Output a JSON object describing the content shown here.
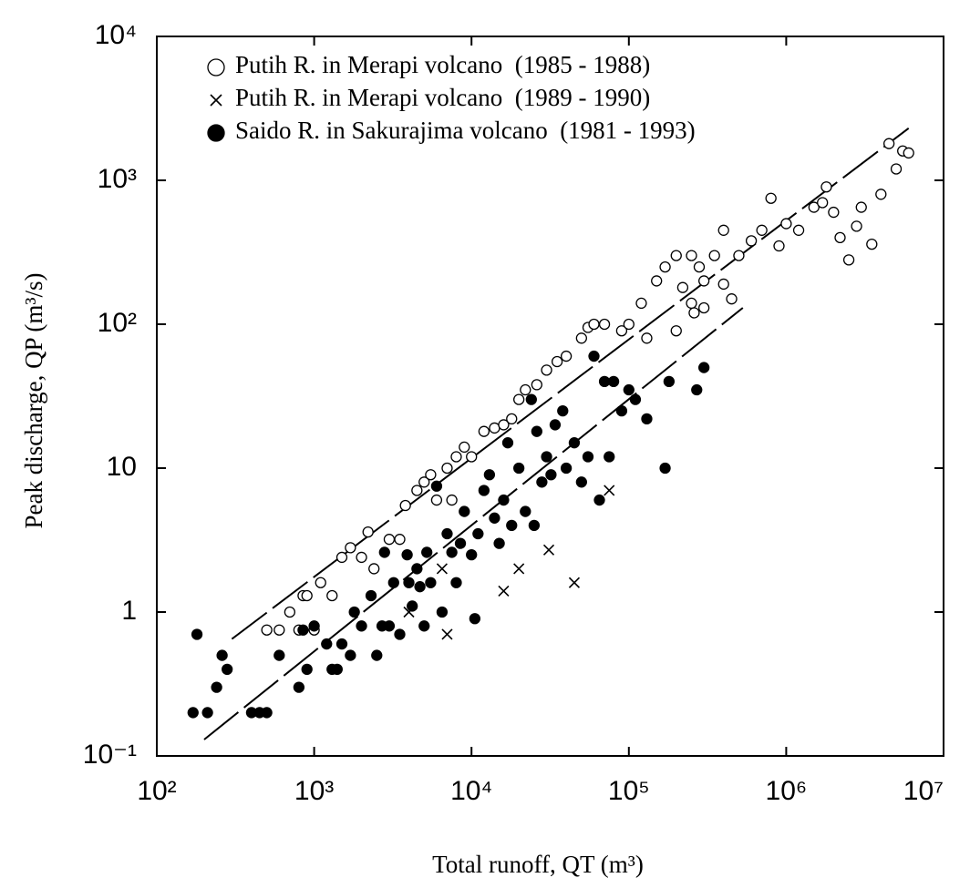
{
  "chart_data": {
    "type": "scatter",
    "x_label": "Total runoff,  QT  (m³)",
    "y_label": "Peak discharge,  QP  (m³/s)",
    "xscale": "log",
    "yscale": "log",
    "xlim": [
      100,
      10000000
    ],
    "ylim": [
      0.1,
      10000
    ],
    "xticks": [
      {
        "value": 100,
        "label": "10²"
      },
      {
        "value": 1000,
        "label": "10³"
      },
      {
        "value": 10000,
        "label": "10⁴"
      },
      {
        "value": 100000,
        "label": "10⁵"
      },
      {
        "value": 1000000,
        "label": "10⁶"
      },
      {
        "value": 10000000,
        "label": "10⁷"
      }
    ],
    "yticks": [
      {
        "value": 0.1,
        "label": "10⁻¹"
      },
      1,
      10,
      {
        "value": 100,
        "label": "10²"
      },
      {
        "value": 1000,
        "label": "10³"
      },
      {
        "value": 10000,
        "label": "10⁴"
      }
    ],
    "series": [
      {
        "name": "Putih R. in Merapi volcano  (1985 - 1988)",
        "marker": "open-circle",
        "color": "#000000",
        "x": [
          500,
          600,
          700,
          800,
          850,
          900,
          1000,
          1100,
          1300,
          1500,
          1700,
          2000,
          2200,
          2400,
          3000,
          3500,
          3800,
          4500,
          5000,
          5500,
          6000,
          7000,
          7500,
          8000,
          9000,
          10000,
          12000,
          14000,
          16000,
          18000,
          20000,
          22000,
          26000,
          30000,
          35000,
          40000,
          50000,
          55000,
          60000,
          70000,
          90000,
          100000,
          120000,
          130000,
          150000,
          170000,
          200000,
          220000,
          250000,
          280000,
          300000,
          350000,
          400000,
          450000,
          500000,
          600000,
          700000,
          800000,
          900000,
          1000000,
          1200000,
          1500000,
          1800000,
          2000000,
          2200000,
          2500000,
          3000000,
          3500000,
          4000000,
          5000000,
          5500000,
          6000000,
          4500000,
          200000,
          250000,
          300000,
          400000,
          260000,
          1700000,
          2800000
        ],
        "y": [
          0.75,
          0.75,
          1.0,
          0.75,
          1.3,
          1.3,
          0.75,
          1.6,
          1.3,
          2.4,
          2.8,
          2.4,
          3.6,
          2.0,
          3.2,
          3.2,
          5.5,
          7,
          8,
          9,
          6,
          10,
          6,
          12,
          14,
          12,
          18,
          19,
          20,
          22,
          30,
          35,
          38,
          48,
          55,
          60,
          80,
          95,
          100,
          100,
          90,
          100,
          140,
          80,
          200,
          250,
          300,
          180,
          300,
          250,
          200,
          300,
          450,
          150,
          300,
          380,
          450,
          750,
          350,
          500,
          450,
          650,
          900,
          600,
          400,
          280,
          650,
          360,
          800,
          1200,
          1600,
          1550,
          1800,
          90,
          140,
          130,
          190,
          120,
          700,
          480
        ]
      },
      {
        "name": "Putih R. in Merapi volcano  (1989 - 1990)",
        "marker": "x",
        "color": "#000000",
        "x": [
          4000,
          6500,
          7000,
          16000,
          20000,
          31000,
          45000,
          75000
        ],
        "y": [
          1.0,
          2.0,
          0.7,
          1.4,
          2.0,
          2.7,
          1.6,
          7
        ]
      },
      {
        "name": "Saido R. in Sakurajima volcano  (1981 - 1993)",
        "marker": "filled-circle",
        "color": "#000000",
        "x": [
          170,
          180,
          210,
          240,
          260,
          280,
          400,
          450,
          500,
          600,
          800,
          850,
          900,
          1000,
          1200,
          1300,
          1400,
          1500,
          1700,
          1800,
          2000,
          2300,
          2500,
          2700,
          3000,
          3200,
          3500,
          3900,
          4200,
          4500,
          4700,
          5000,
          5200,
          5500,
          6000,
          6500,
          7000,
          7500,
          8000,
          8500,
          9000,
          10000,
          10500,
          11000,
          12000,
          13000,
          14000,
          15000,
          16000,
          17000,
          18000,
          20000,
          22000,
          24000,
          25000,
          26000,
          28000,
          30000,
          32000,
          34000,
          38000,
          40000,
          45000,
          50000,
          55000,
          60000,
          65000,
          70000,
          75000,
          80000,
          90000,
          100000,
          110000,
          130000,
          180000,
          170000,
          300000,
          270000,
          4000,
          2800
        ],
        "y": [
          0.2,
          0.7,
          0.2,
          0.3,
          0.5,
          0.4,
          0.2,
          0.2,
          0.2,
          0.5,
          0.3,
          0.75,
          0.4,
          0.8,
          0.6,
          0.4,
          0.4,
          0.6,
          0.5,
          1.0,
          0.8,
          1.3,
          0.5,
          0.8,
          0.8,
          1.6,
          0.7,
          2.5,
          1.1,
          2.0,
          1.5,
          0.8,
          2.6,
          1.6,
          7.5,
          1.0,
          3.5,
          2.6,
          1.6,
          3.0,
          5.0,
          2.5,
          0.9,
          3.5,
          7,
          9,
          4.5,
          3.0,
          6,
          15,
          4,
          10,
          5,
          30,
          4,
          18,
          8,
          12,
          9,
          20,
          25,
          10,
          15,
          8,
          12,
          60,
          6,
          40,
          12,
          40,
          25,
          35,
          30,
          22,
          40,
          10,
          50,
          35,
          1.6,
          2.6
        ]
      }
    ],
    "fit_lines": [
      {
        "x": [
          300,
          6000000
        ],
        "y": [
          0.65,
          2300
        ]
      },
      {
        "x": [
          200,
          530000
        ],
        "y": [
          0.13,
          130
        ]
      }
    ]
  }
}
